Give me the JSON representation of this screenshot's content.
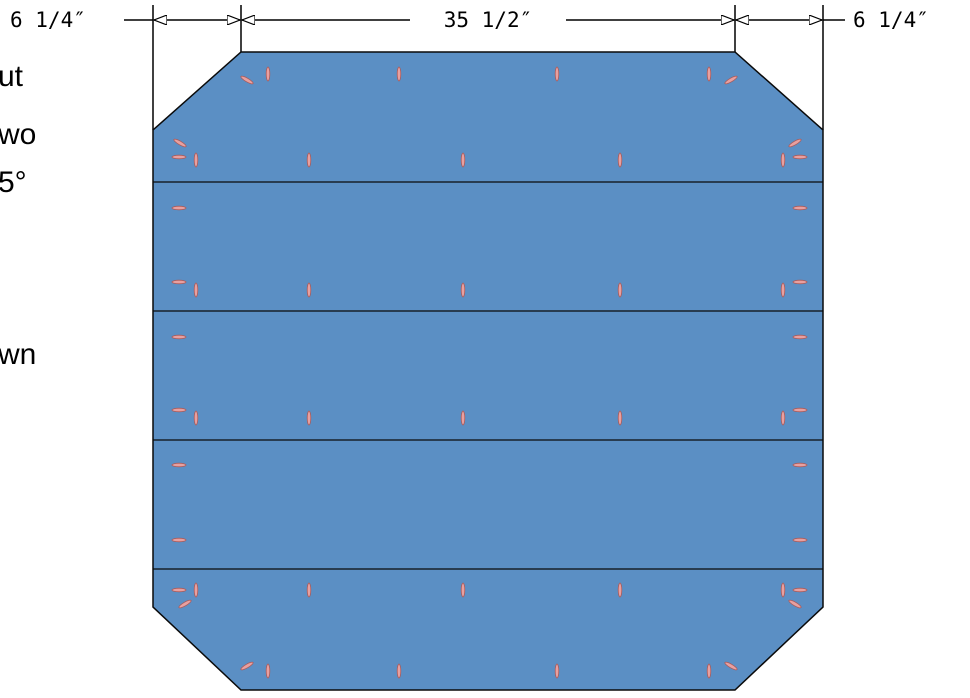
{
  "left_text": {
    "lines": [
      "ut",
      "wo",
      "5°",
      "wn"
    ]
  },
  "dimensions": {
    "left_label": "6 1/4″",
    "middle_label": "35 1/2″",
    "right_label": "6 1/4″"
  },
  "colors": {
    "panel_fill": "#5b8fc4",
    "panel_stroke": "#0a0a0a",
    "pocket_fill": "#e8a0a0",
    "pocket_stroke": "#a85a5a",
    "dimension_line": "#000000"
  },
  "panel": {
    "board_count": 5,
    "shape": "octagon",
    "joinery": "pocket-holes"
  }
}
